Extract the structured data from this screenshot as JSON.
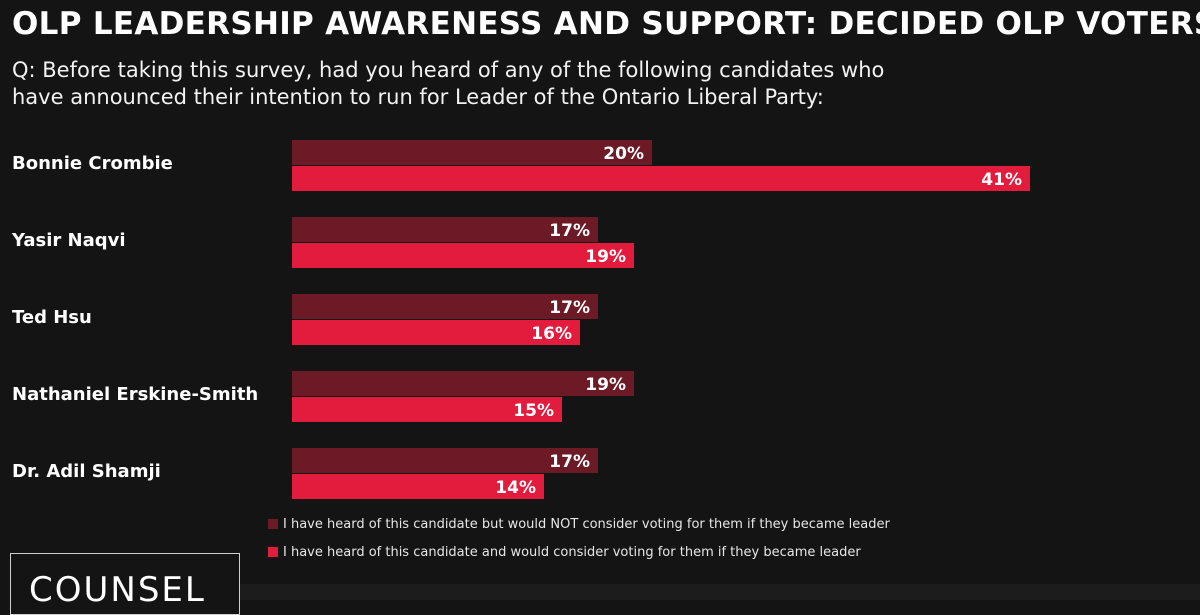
{
  "title": "OLP LEADERSHIP AWARENESS AND SUPPORT: DECIDED OLP VOTERS",
  "question_line1": "Q: Before taking this survey, had you heard of any of the following candidates who",
  "question_line2": "have announced their intention to run for Leader of the Ontario Liberal Party:",
  "chart_data": {
    "type": "bar",
    "orientation": "horizontal",
    "categories": [
      "Bonnie Crombie",
      "Yasir Naqvi",
      "Ted Hsu",
      "Nathaniel Erskine-Smith",
      "Dr. Adil Shamji"
    ],
    "series": [
      {
        "name": "I have heard of this candidate but would NOT consider voting for them if they became leader",
        "color": "#6b1a26",
        "values": [
          20,
          17,
          17,
          19,
          17
        ],
        "labels": [
          "20%",
          "17%",
          "17%",
          "19%",
          "17%"
        ]
      },
      {
        "name": "I have heard of this candidate and would consider voting for them if they became leader",
        "color": "#e31b3c",
        "values": [
          41,
          19,
          16,
          15,
          14
        ],
        "labels": [
          "41%",
          "19%",
          "16%",
          "15%",
          "14%"
        ]
      }
    ],
    "xlim": [
      0,
      100
    ],
    "legend_position": "bottom"
  },
  "logo": {
    "text": "COUNSEL"
  }
}
